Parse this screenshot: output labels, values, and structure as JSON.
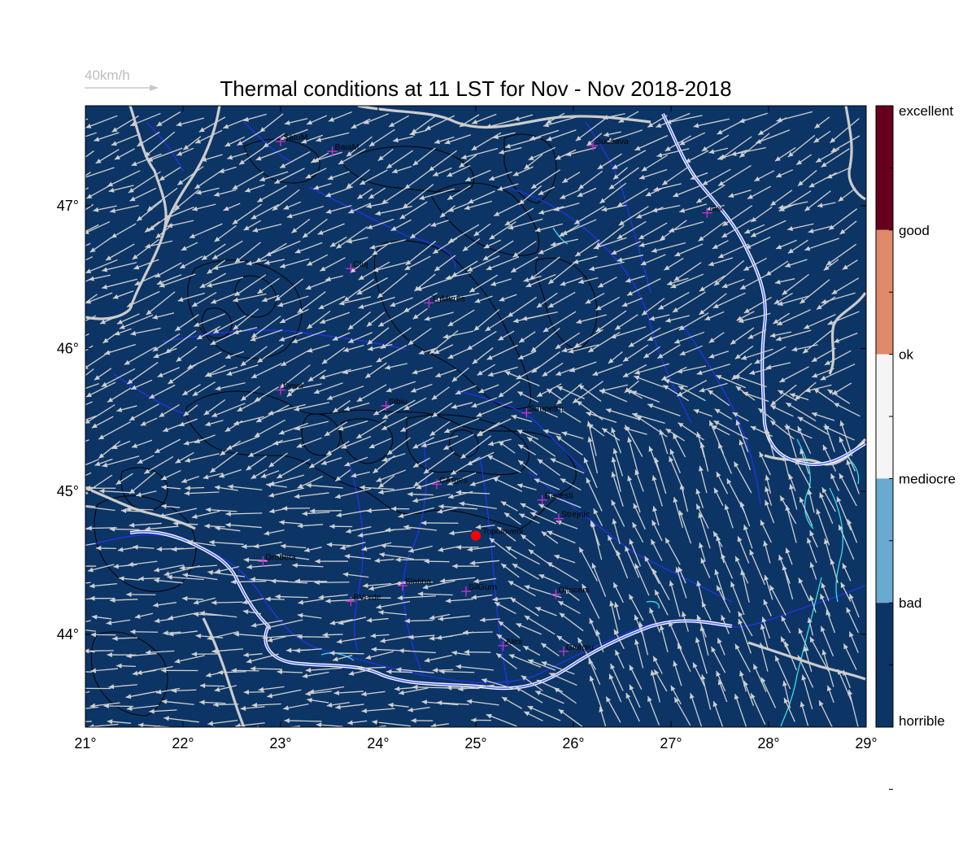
{
  "title": "Thermal conditions at 11 LST for Nov - Nov  2018-2018",
  "scale_label": "40km/h",
  "colors": {
    "background": "#0c3566",
    "rivers": "#2233dd",
    "lakes": "#33e0f0",
    "borders": "#cccccc",
    "contours": "#000000",
    "wind_arrows": "#cfcfcf",
    "city_marker": "#cc33cc",
    "highlight_marker": "#ff0000"
  },
  "map": {
    "lon_range": [
      21,
      29
    ],
    "lat_range": [
      43.35,
      47.7
    ],
    "x_ticks": [
      {
        "value": 21,
        "label": "21°"
      },
      {
        "value": 22,
        "label": "22°"
      },
      {
        "value": 23,
        "label": "23°"
      },
      {
        "value": 24,
        "label": "24°"
      },
      {
        "value": 25,
        "label": "25°"
      },
      {
        "value": 26,
        "label": "26°"
      },
      {
        "value": 27,
        "label": "27°"
      },
      {
        "value": 28,
        "label": "28°"
      },
      {
        "value": 29,
        "label": "29°"
      }
    ],
    "y_ticks": [
      {
        "value": 44,
        "label": "44°"
      },
      {
        "value": 45,
        "label": "45°"
      },
      {
        "value": 46,
        "label": "46°"
      },
      {
        "value": 47,
        "label": "47°"
      }
    ],
    "cities": [
      {
        "name": "SatuM",
        "lon": 23.0,
        "lat": 47.45
      },
      {
        "name": "BaiaM",
        "lon": 23.53,
        "lat": 47.38
      },
      {
        "name": "Suceava",
        "lon": 26.2,
        "lat": 47.42
      },
      {
        "name": "Iasi",
        "lon": 27.37,
        "lat": 46.95
      },
      {
        "name": "Cluj",
        "lon": 23.72,
        "lat": 46.56
      },
      {
        "name": "TgMures",
        "lon": 24.52,
        "lat": 46.32
      },
      {
        "name": "Deva",
        "lon": 23.0,
        "lat": 45.71
      },
      {
        "name": "Sibiu",
        "lon": 24.08,
        "lat": 45.6
      },
      {
        "name": "Sanpetru",
        "lon": 25.52,
        "lat": 45.55
      },
      {
        "name": "CArges",
        "lon": 24.6,
        "lat": 45.05
      },
      {
        "name": "Banesti",
        "lon": 25.68,
        "lat": 44.94
      },
      {
        "name": "Strejnic",
        "lon": 25.85,
        "lat": 44.81
      },
      {
        "name": "Drobeta",
        "lon": 22.82,
        "lat": 44.51
      },
      {
        "name": "Slatina",
        "lon": 24.25,
        "lat": 44.34
      },
      {
        "name": "SilGurn",
        "lon": 24.9,
        "lat": 44.3
      },
      {
        "name": "Olinceni",
        "lon": 25.82,
        "lat": 44.28
      },
      {
        "name": "BVerde",
        "lon": 23.72,
        "lat": 44.23
      },
      {
        "name": "Alex",
        "lon": 25.28,
        "lat": 43.92
      },
      {
        "name": "Giurgiu",
        "lon": 25.9,
        "lat": 43.88
      }
    ],
    "highlight_city": {
      "name": "Topoloveni",
      "lon": 25.0,
      "lat": 44.69
    }
  },
  "colorbar": {
    "levels": [
      {
        "label": "excellent",
        "color": "#67001f"
      },
      {
        "label": "good",
        "color": "#e0896b"
      },
      {
        "label": "ok",
        "color": "#f5f5f5"
      },
      {
        "label": "mediocre",
        "color": "#6aaad0"
      },
      {
        "label": "bad",
        "color": "#0c3566"
      },
      {
        "label": "horrible",
        "color": "#0c3566"
      }
    ]
  }
}
